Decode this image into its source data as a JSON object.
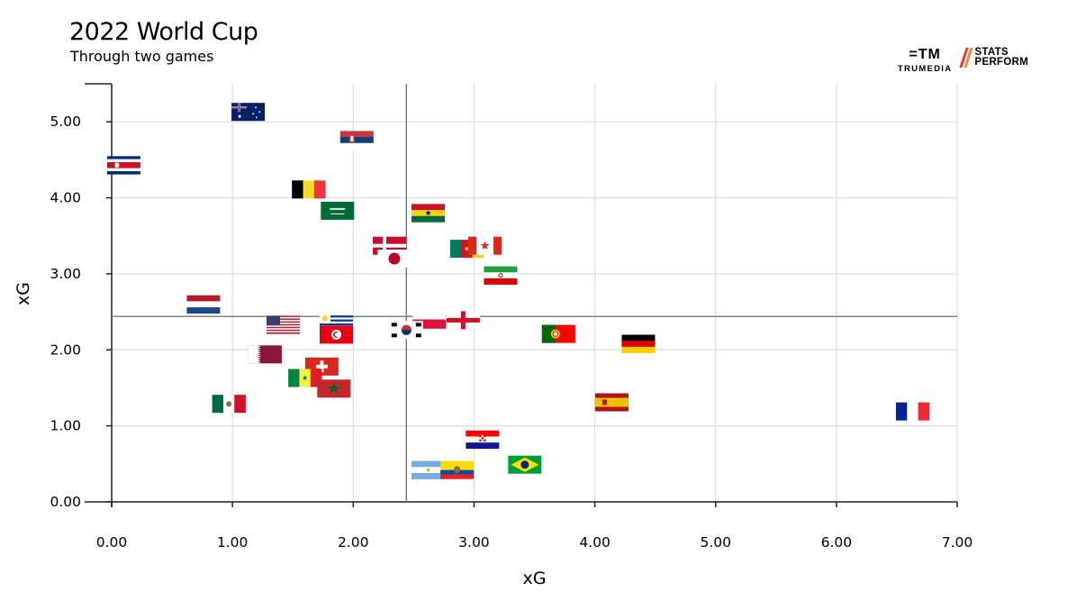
{
  "header": {
    "title": "2022 World Cup",
    "subtitle": "Through two games"
  },
  "logos": {
    "trumedia_mark": "=TM",
    "trumedia_name": "TRUMEDIA",
    "stats_perform_line1": "STATS",
    "stats_perform_line2": "PERFORM",
    "colors": [
      "#e63a2f",
      "#f28a2a"
    ]
  },
  "chart_data": {
    "type": "scatter",
    "xlabel": "xG",
    "ylabel": "xG",
    "xlim": [
      0,
      7
    ],
    "ylim": [
      0,
      5.5
    ],
    "xticks": [
      "0.00",
      "1.00",
      "2.00",
      "3.00",
      "4.00",
      "5.00",
      "6.00",
      "7.00"
    ],
    "yticks": [
      "0.00",
      "1.00",
      "2.00",
      "3.00",
      "4.00",
      "5.00"
    ],
    "grid": true,
    "reference_lines": {
      "x": 2.44,
      "y": 2.44
    },
    "points": [
      {
        "team": "Australia",
        "x": 1.13,
        "y": 5.13,
        "flag": "australia"
      },
      {
        "team": "Serbia",
        "x": 2.03,
        "y": 4.76,
        "flag": "serbia"
      },
      {
        "team": "Costa Rica",
        "x": 0.1,
        "y": 4.43,
        "flag": "costa-rica"
      },
      {
        "team": "Belgium",
        "x": 1.63,
        "y": 4.11,
        "flag": "belgium"
      },
      {
        "team": "Saudi Arabia",
        "x": 1.87,
        "y": 3.83,
        "flag": "saudi-arabia"
      },
      {
        "team": "Ghana",
        "x": 2.62,
        "y": 3.8,
        "flag": "ghana"
      },
      {
        "team": "Denmark",
        "x": 2.3,
        "y": 3.37,
        "flag": "denmark"
      },
      {
        "team": "Japan",
        "x": 2.34,
        "y": 3.2,
        "flag": "japan"
      },
      {
        "team": "Cameroon",
        "x": 2.94,
        "y": 3.33,
        "flag": "cameroon"
      },
      {
        "team": "Canada",
        "x": 3.09,
        "y": 3.37,
        "flag": "canada"
      },
      {
        "team": "Iran",
        "x": 3.22,
        "y": 2.98,
        "flag": "iran"
      },
      {
        "team": "Netherlands",
        "x": 0.76,
        "y": 2.6,
        "flag": "netherlands"
      },
      {
        "team": "USA",
        "x": 1.42,
        "y": 2.33,
        "flag": "usa"
      },
      {
        "team": "Uruguay",
        "x": 1.86,
        "y": 2.36,
        "flag": "uruguay"
      },
      {
        "team": "Tunisia",
        "x": 1.86,
        "y": 2.2,
        "flag": "tunisia"
      },
      {
        "team": "Poland",
        "x": 2.63,
        "y": 2.4,
        "flag": "poland"
      },
      {
        "team": "South Korea",
        "x": 2.44,
        "y": 2.26,
        "flag": "south-korea"
      },
      {
        "team": "England",
        "x": 2.91,
        "y": 2.39,
        "flag": "england"
      },
      {
        "team": "Portugal",
        "x": 3.7,
        "y": 2.21,
        "flag": "portugal"
      },
      {
        "team": "Germany",
        "x": 4.36,
        "y": 2.08,
        "flag": "germany"
      },
      {
        "team": "Qatar",
        "x": 1.27,
        "y": 1.94,
        "flag": "qatar"
      },
      {
        "team": "Switzerland",
        "x": 1.74,
        "y": 1.78,
        "flag": "switzerland"
      },
      {
        "team": "Senegal",
        "x": 1.6,
        "y": 1.63,
        "flag": "senegal"
      },
      {
        "team": "Morocco",
        "x": 1.84,
        "y": 1.49,
        "flag": "morocco"
      },
      {
        "team": "Mexico",
        "x": 0.97,
        "y": 1.29,
        "flag": "mexico"
      },
      {
        "team": "Spain",
        "x": 4.14,
        "y": 1.31,
        "flag": "spain"
      },
      {
        "team": "France",
        "x": 6.63,
        "y": 1.19,
        "flag": "france"
      },
      {
        "team": "Croatia",
        "x": 3.07,
        "y": 0.82,
        "flag": "croatia"
      },
      {
        "team": "Brazil",
        "x": 3.42,
        "y": 0.49,
        "flag": "brazil"
      },
      {
        "team": "Argentina",
        "x": 2.62,
        "y": 0.42,
        "flag": "argentina"
      },
      {
        "team": "Ecuador",
        "x": 2.86,
        "y": 0.42,
        "flag": "ecuador"
      }
    ]
  }
}
